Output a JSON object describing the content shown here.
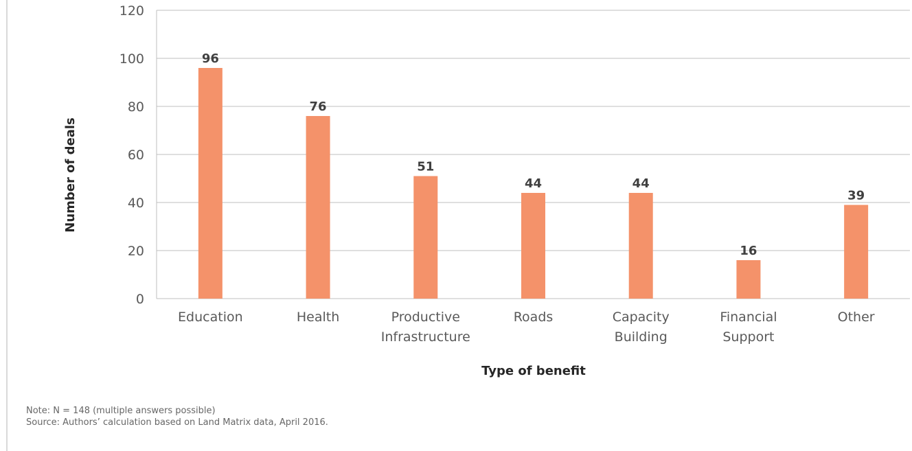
{
  "chart_data": {
    "type": "bar",
    "categories": [
      [
        "Education"
      ],
      [
        "Health"
      ],
      [
        "Productive",
        "Infrastructure"
      ],
      [
        "Roads"
      ],
      [
        "Capacity",
        "Building"
      ],
      [
        "Financial",
        "Support"
      ],
      [
        "Other"
      ]
    ],
    "values": [
      96,
      76,
      51,
      44,
      44,
      16,
      39
    ],
    "xlabel": "Type of benefit",
    "ylabel": "Number of deals",
    "ylim": [
      0,
      120
    ],
    "yticks": [
      0,
      20,
      40,
      60,
      80,
      100,
      120
    ],
    "grid": true,
    "bar_color": "#F4926A"
  },
  "notes": {
    "note": "Note: N = 148 (multiple answers possible)",
    "source": "Source: Authors’ calculation based on Land Matrix data, April 2016."
  }
}
